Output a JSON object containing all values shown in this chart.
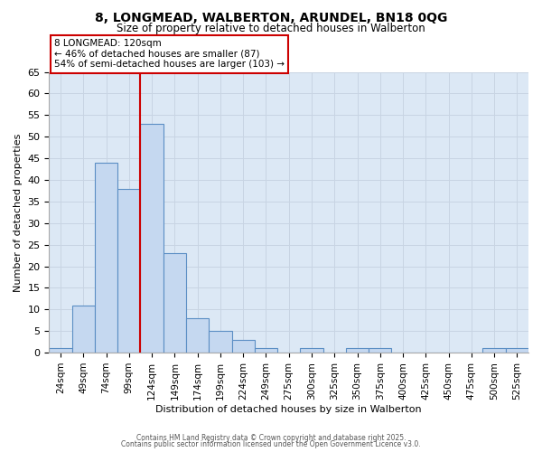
{
  "title1": "8, LONGMEAD, WALBERTON, ARUNDEL, BN18 0QG",
  "title2": "Size of property relative to detached houses in Walberton",
  "xlabel": "Distribution of detached houses by size in Walberton",
  "ylabel": "Number of detached properties",
  "bar_color": "#c5d8f0",
  "bar_edge_color": "#5b8ec4",
  "categories": [
    "24sqm",
    "49sqm",
    "74sqm",
    "99sqm",
    "124sqm",
    "149sqm",
    "174sqm",
    "199sqm",
    "224sqm",
    "249sqm",
    "275sqm",
    "300sqm",
    "325sqm",
    "350sqm",
    "375sqm",
    "400sqm",
    "425sqm",
    "450sqm",
    "475sqm",
    "500sqm",
    "525sqm"
  ],
  "values": [
    1,
    11,
    44,
    38,
    53,
    23,
    8,
    5,
    3,
    1,
    0,
    1,
    0,
    1,
    1,
    0,
    0,
    0,
    0,
    1,
    1
  ],
  "property_line_color": "#cc0000",
  "annotation_text": "8 LONGMEAD: 120sqm\n← 46% of detached houses are smaller (87)\n54% of semi-detached houses are larger (103) →",
  "annotation_box_color": "#cc0000",
  "ylim": [
    0,
    65
  ],
  "yticks": [
    0,
    5,
    10,
    15,
    20,
    25,
    30,
    35,
    40,
    45,
    50,
    55,
    60,
    65
  ],
  "grid_color": "#c8d4e3",
  "background_color": "#dce8f5",
  "footer1": "Contains HM Land Registry data © Crown copyright and database right 2025.",
  "footer2": "Contains public sector information licensed under the Open Government Licence v3.0."
}
